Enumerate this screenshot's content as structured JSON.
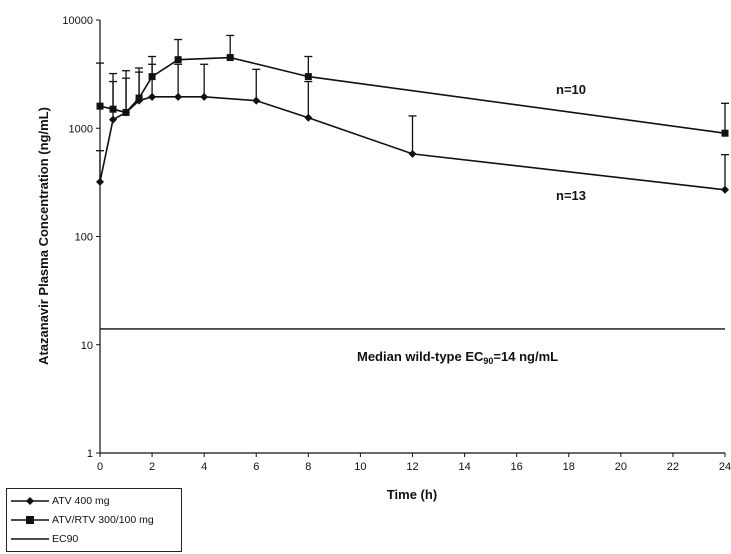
{
  "chart_data": {
    "type": "line",
    "xlabel": "Time (h)",
    "ylabel": "Atazanavir Plasma Concentration (ng/mL)",
    "xlim": [
      0,
      24
    ],
    "ylim": [
      1,
      10000
    ],
    "yscale": "log",
    "x_ticks": [
      "0",
      "2",
      "4",
      "6",
      "8",
      "10",
      "12",
      "14",
      "16",
      "18",
      "20",
      "22",
      "24"
    ],
    "y_ticks": [
      "1",
      "10",
      "100",
      "1000",
      "10000"
    ],
    "series": [
      {
        "name": "ATV 400 mg",
        "marker": "diamond",
        "color": "#111111",
        "x": [
          0,
          0.5,
          1,
          1.5,
          2,
          3,
          4,
          6,
          8,
          12,
          24
        ],
        "y": [
          320,
          1200,
          1400,
          1800,
          1950,
          1950,
          1950,
          1800,
          1250,
          580,
          270
        ],
        "error_upper": [
          620,
          2700,
          2900,
          3300,
          3900,
          3900,
          3900,
          3500,
          2700,
          1300,
          570
        ]
      },
      {
        "name": "ATV/RTV 300/100 mg",
        "marker": "square",
        "color": "#111111",
        "x": [
          0,
          0.5,
          1,
          1.5,
          2,
          3,
          5,
          8,
          24
        ],
        "y": [
          1600,
          1500,
          1400,
          1900,
          3000,
          4300,
          4500,
          3000,
          900
        ],
        "error_upper": [
          4000,
          3200,
          3400,
          3600,
          4600,
          6600,
          7200,
          4600,
          1700
        ]
      }
    ],
    "reference_line": {
      "name": "EC90",
      "y": 14
    },
    "annotations": {
      "n_rtv": "n=10",
      "n_atv": "n=13",
      "ec90_prefix": "Median wild-type EC",
      "ec90_sub": "90",
      "ec90_suffix": "=14 ng/mL"
    },
    "legend": {
      "placement": "bottom-left",
      "items": [
        "ATV 400 mg",
        "ATV/RTV 300/100 mg",
        "EC90"
      ]
    }
  }
}
